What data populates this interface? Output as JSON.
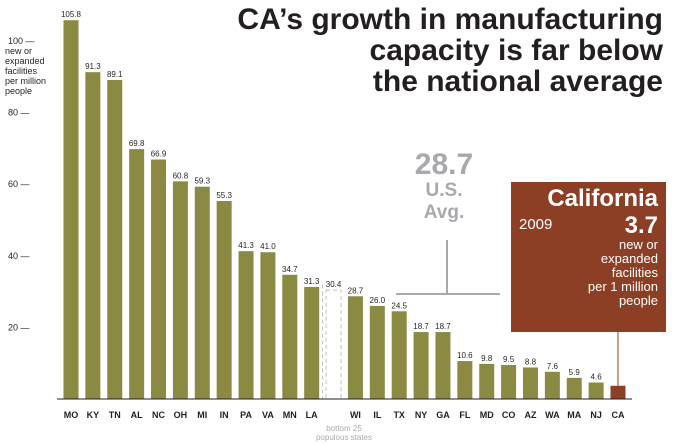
{
  "title_lines": [
    "CA’s growth in manufacturing",
    "capacity is far below",
    "the national average"
  ],
  "y_axis_title_lines": [
    "new or",
    "expanded",
    "facilities",
    "per million",
    "people"
  ],
  "us_average": {
    "value": "28.7",
    "label_line1": "U.S.",
    "label_line2": "Avg."
  },
  "california_callout": {
    "name": "California",
    "year": "2009",
    "value": "3.7",
    "unit_lines": [
      "new or",
      "expanded",
      "facilities",
      "per 1 million",
      "people"
    ]
  },
  "bottom_note_lines": [
    "bottom 25",
    "populous states"
  ],
  "colors": {
    "bar": "#8a8a42",
    "highlight": "#8c3f24",
    "average": "#a7a9ac",
    "text": "#231f20",
    "divider": "#bcbec0"
  },
  "chart_data": {
    "type": "bar",
    "title": "CA’s growth in manufacturing capacity is far below the national average",
    "ylabel": "new or expanded facilities per million people",
    "ylim": [
      0,
      110
    ],
    "yticks": [
      20,
      40,
      60,
      80,
      100
    ],
    "ytick_labels": [
      "20 —",
      "40 —",
      "60 —",
      "80 —",
      "100 —"
    ],
    "grid": false,
    "categories": [
      "MO",
      "KY",
      "TN",
      "AL",
      "NC",
      "OH",
      "MI",
      "IN",
      "PA",
      "VA",
      "MN",
      "LA",
      "",
      "WI",
      "IL",
      "TX",
      "NY",
      "GA",
      "FL",
      "MD",
      "CO",
      "AZ",
      "WA",
      "MA",
      "NJ",
      "CA"
    ],
    "values": [
      105.8,
      91.3,
      89.1,
      69.8,
      66.9,
      60.8,
      59.3,
      55.3,
      41.3,
      41.0,
      34.7,
      31.3,
      30.4,
      28.7,
      26.0,
      24.5,
      18.7,
      18.7,
      10.6,
      9.8,
      9.5,
      8.8,
      7.6,
      5.9,
      4.6,
      3.7
    ],
    "value_labels": [
      "105.8",
      "91.3",
      "89.1",
      "69.8",
      "66.9",
      "60.8",
      "59.3",
      "55.3",
      "41.3",
      "41.0",
      "34.7",
      "31.3",
      "30.4",
      "28.7",
      "26.0",
      "24.5",
      "18.7",
      "18.7",
      "10.6",
      "9.8",
      "9.5",
      "8.8",
      "7.6",
      "5.9",
      "4.6",
      ""
    ],
    "bar_styles": [
      "solid",
      "solid",
      "solid",
      "solid",
      "solid",
      "solid",
      "solid",
      "solid",
      "solid",
      "solid",
      "solid",
      "solid",
      "dashed",
      "solid",
      "solid",
      "solid",
      "solid",
      "solid",
      "solid",
      "solid",
      "solid",
      "solid",
      "solid",
      "solid",
      "solid",
      "highlight"
    ],
    "reference_line": {
      "value": 28.7
    }
  }
}
